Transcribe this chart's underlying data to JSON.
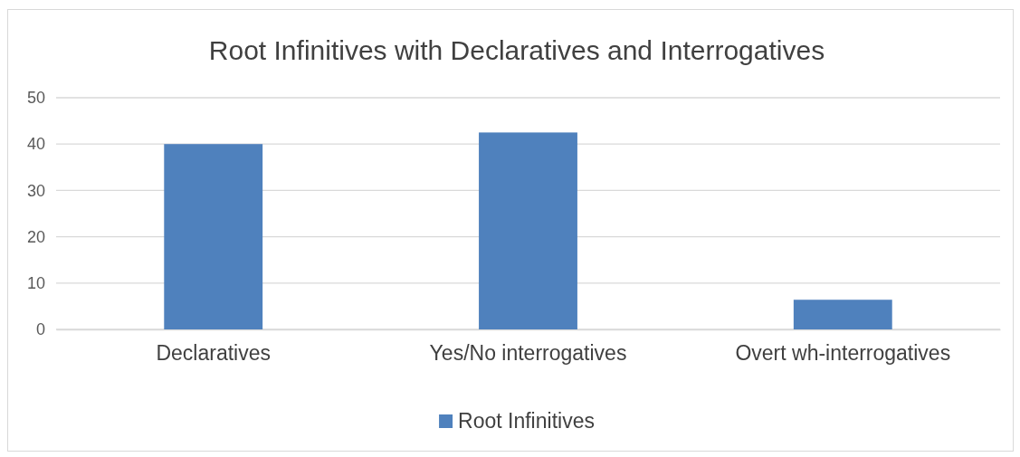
{
  "chart_data": {
    "type": "bar",
    "title": "Root Infinitives with Declaratives and Interrogatives",
    "categories": [
      "Declaratives",
      "Yes/No interrogatives",
      "Overt wh-interrogatives"
    ],
    "series": [
      {
        "name": "Root Infinitives",
        "color": "#4f81bd",
        "values": [
          40,
          42.5,
          6.4
        ]
      }
    ],
    "ylim": [
      0,
      50
    ],
    "yticks": [
      0,
      10,
      20,
      30,
      40,
      50
    ],
    "grid": "y",
    "legend": "bottom"
  }
}
